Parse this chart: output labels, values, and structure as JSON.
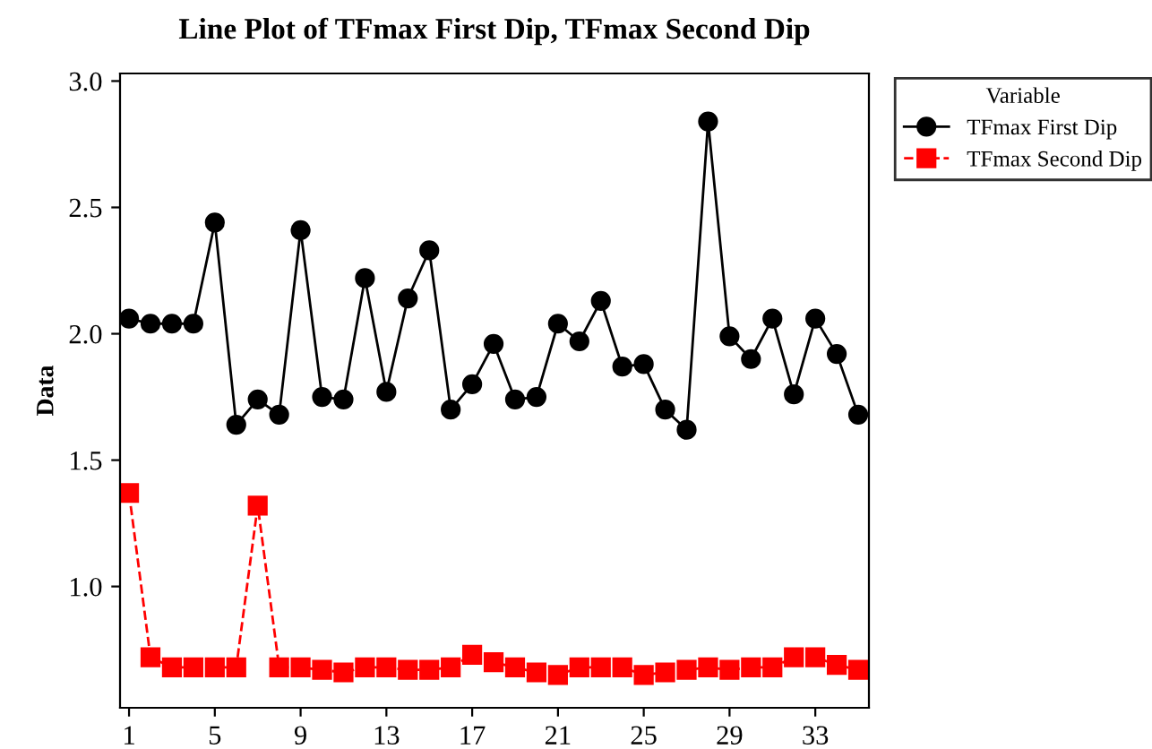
{
  "chart_data": {
    "type": "line",
    "title": "Line Plot of TFmax First Dip, TFmax Second Dip",
    "ylabel": "Data",
    "legend_title": "Variable",
    "legend": "top right",
    "x": [
      1,
      2,
      3,
      4,
      5,
      6,
      7,
      8,
      9,
      10,
      11,
      12,
      13,
      14,
      15,
      16,
      17,
      18,
      19,
      20,
      21,
      22,
      23,
      24,
      25,
      26,
      27,
      28,
      29,
      30,
      31,
      32,
      33,
      34,
      35
    ],
    "series": [
      {
        "name": "TFmax First Dip",
        "color": "#000000",
        "marker": "circle",
        "line_style": "solid",
        "values": [
          2.06,
          2.04,
          2.04,
          2.04,
          2.44,
          1.64,
          1.74,
          1.68,
          2.41,
          1.75,
          1.74,
          2.22,
          1.77,
          2.14,
          2.33,
          1.7,
          1.8,
          1.96,
          1.74,
          1.75,
          2.04,
          1.97,
          2.13,
          1.87,
          1.88,
          1.7,
          1.62,
          2.84,
          1.99,
          1.9,
          2.06,
          1.76,
          2.06,
          1.92,
          1.68
        ]
      },
      {
        "name": "TFmax Second Dip",
        "color": "#ff0000",
        "marker": "square",
        "line_style": "dashed",
        "values": [
          1.37,
          0.72,
          0.68,
          0.68,
          0.68,
          0.68,
          1.32,
          0.68,
          0.68,
          0.67,
          0.66,
          0.68,
          0.68,
          0.67,
          0.67,
          0.68,
          0.73,
          0.7,
          0.68,
          0.66,
          0.65,
          0.68,
          0.68,
          0.68,
          0.65,
          0.66,
          0.67,
          0.68,
          0.67,
          0.68,
          0.68,
          0.72,
          0.72,
          0.69,
          0.67
        ]
      }
    ],
    "xlim": [
      0.58,
      35.5
    ],
    "xticks": [
      1,
      5,
      9,
      13,
      17,
      21,
      25,
      29,
      33
    ],
    "ylim": [
      0.52,
      3.03
    ],
    "yticks": [
      {
        "value": 1.0,
        "label": "1.0"
      },
      {
        "value": 1.5,
        "label": "1.5"
      },
      {
        "value": 2.0,
        "label": "2.0"
      },
      {
        "value": 2.5,
        "label": "2.5"
      },
      {
        "value": 3.0,
        "label": "3.0"
      }
    ],
    "grid": false
  }
}
